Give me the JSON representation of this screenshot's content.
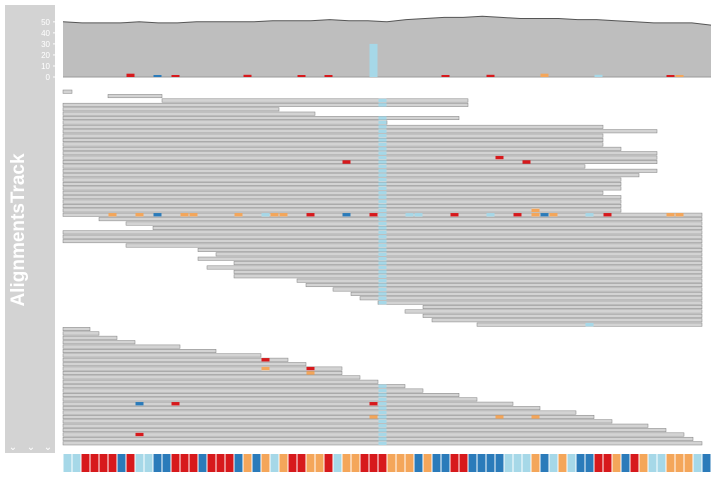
{
  "track": {
    "title": "AlignmentsTrack",
    "coverage_ticks": [
      "50",
      "40",
      "30",
      "20",
      "10",
      "0"
    ],
    "collapse_glyph": "⌄",
    "colors": {
      "panel": "#d3d3d3",
      "coverage_fill": "#bebebe",
      "coverage_line": "#555555",
      "read_fill": "#d3d3d3",
      "read_border": "#808080",
      "mismatch_A": "#a6d8e8",
      "mismatch_C": "#2b7bba",
      "mismatch_G": "#f4a65a",
      "mismatch_T": "#d7191c"
    }
  },
  "chart_data": {
    "type": "area",
    "title": "",
    "xlabel": "",
    "ylabel": "",
    "ylim": [
      0,
      58
    ],
    "coverage": [
      50,
      49,
      49,
      49,
      50,
      49,
      49,
      50,
      50,
      50,
      50,
      51,
      51,
      51,
      52,
      51,
      51,
      50,
      52,
      53,
      54,
      54,
      55,
      54,
      53,
      53,
      53,
      52,
      52,
      51,
      50,
      49,
      49,
      49,
      47
    ],
    "coverage_variants": [
      {
        "pos": 7,
        "base": "T",
        "count": 3
      },
      {
        "pos": 10,
        "base": "C",
        "count": 1
      },
      {
        "pos": 12,
        "base": "T",
        "count": 1
      },
      {
        "pos": 20,
        "base": "T",
        "count": 2
      },
      {
        "pos": 26,
        "base": "T",
        "count": 1
      },
      {
        "pos": 29,
        "base": "T",
        "count": 1
      },
      {
        "pos": 34,
        "base": "A",
        "count": 30
      },
      {
        "pos": 42,
        "base": "T",
        "count": 1
      },
      {
        "pos": 47,
        "base": "T",
        "count": 2
      },
      {
        "pos": 53,
        "base": "G",
        "count": 3
      },
      {
        "pos": 59,
        "base": "A",
        "count": 2
      },
      {
        "pos": 67,
        "base": "T",
        "count": 1
      },
      {
        "pos": 68,
        "base": "G",
        "count": 1
      }
    ],
    "sequence": "AATTTTCTAACCTTTCTTTCGCGAGTTGGTAGGTTTGGGCGCCTTCCCCAAAGCAGACCTTGCTGAAGGGAC",
    "reads": [
      [
        0,
        1
      ],
      [
        5,
        11
      ],
      [
        11,
        45
      ],
      [
        0,
        45
      ],
      [
        0,
        24
      ],
      [
        0,
        28
      ],
      [
        0,
        44
      ],
      [
        0,
        36
      ],
      [
        0,
        60
      ],
      [
        0,
        66
      ],
      [
        0,
        60
      ],
      [
        0,
        60
      ],
      [
        0,
        60
      ],
      [
        0,
        62
      ],
      [
        0,
        66
      ],
      [
        0,
        66
      ],
      [
        0,
        66
      ],
      [
        0,
        58
      ],
      [
        0,
        66
      ],
      [
        0,
        64
      ],
      [
        0,
        62
      ],
      [
        0,
        62
      ],
      [
        0,
        62
      ],
      [
        0,
        60
      ],
      [
        0,
        62
      ],
      [
        0,
        62
      ],
      [
        0,
        62
      ],
      [
        0,
        62
      ],
      [
        0,
        71
      ],
      [
        4,
        71
      ],
      [
        7,
        71
      ],
      [
        10,
        71
      ],
      [
        0,
        71
      ],
      [
        0,
        71
      ],
      [
        0,
        71
      ],
      [
        7,
        71
      ],
      [
        15,
        71
      ],
      [
        17,
        71
      ],
      [
        15,
        71
      ],
      [
        19,
        71
      ],
      [
        16,
        71
      ],
      [
        19,
        71
      ],
      [
        19,
        71
      ],
      [
        26,
        71
      ],
      [
        27,
        71
      ],
      [
        30,
        71
      ],
      [
        32,
        71
      ],
      [
        33,
        71
      ],
      [
        35,
        71
      ],
      [
        40,
        71
      ],
      [
        38,
        71
      ],
      [
        40,
        71
      ],
      [
        41,
        71
      ],
      [
        46,
        71
      ],
      [
        0,
        3
      ],
      [
        0,
        4
      ],
      [
        0,
        6
      ],
      [
        0,
        8
      ],
      [
        0,
        13
      ],
      [
        0,
        17
      ],
      [
        0,
        22
      ],
      [
        0,
        25
      ],
      [
        0,
        27
      ],
      [
        0,
        31
      ],
      [
        0,
        31
      ],
      [
        0,
        33
      ],
      [
        0,
        35
      ],
      [
        0,
        38
      ],
      [
        0,
        40
      ],
      [
        0,
        44
      ],
      [
        0,
        46
      ],
      [
        0,
        50
      ],
      [
        0,
        53
      ],
      [
        0,
        57
      ],
      [
        0,
        59
      ],
      [
        0,
        61
      ],
      [
        0,
        65
      ],
      [
        0,
        67
      ],
      [
        0,
        69
      ],
      [
        0,
        70
      ],
      [
        0,
        71
      ]
    ],
    "mismatches": [
      {
        "row": 16,
        "pos": 31,
        "base": "T"
      },
      {
        "row": 16,
        "pos": 51,
        "base": "T"
      },
      {
        "row": 15,
        "pos": 48,
        "base": "T"
      },
      {
        "row": 28,
        "pos": 5,
        "base": "G"
      },
      {
        "row": 28,
        "pos": 8,
        "base": "G"
      },
      {
        "row": 28,
        "pos": 10,
        "base": "C"
      },
      {
        "row": 28,
        "pos": 13,
        "base": "G"
      },
      {
        "row": 28,
        "pos": 14,
        "base": "G"
      },
      {
        "row": 28,
        "pos": 19,
        "base": "G"
      },
      {
        "row": 28,
        "pos": 22,
        "base": "A"
      },
      {
        "row": 28,
        "pos": 23,
        "base": "G"
      },
      {
        "row": 28,
        "pos": 24,
        "base": "G"
      },
      {
        "row": 28,
        "pos": 27,
        "base": "T"
      },
      {
        "row": 28,
        "pos": 31,
        "base": "C"
      },
      {
        "row": 28,
        "pos": 34,
        "base": "T"
      },
      {
        "row": 28,
        "pos": 38,
        "base": "A"
      },
      {
        "row": 28,
        "pos": 39,
        "base": "A"
      },
      {
        "row": 28,
        "pos": 43,
        "base": "T"
      },
      {
        "row": 28,
        "pos": 47,
        "base": "A"
      },
      {
        "row": 28,
        "pos": 50,
        "base": "T"
      },
      {
        "row": 28,
        "pos": 52,
        "base": "G"
      },
      {
        "row": 28,
        "pos": 53,
        "base": "C"
      },
      {
        "row": 28,
        "pos": 54,
        "base": "G"
      },
      {
        "row": 28,
        "pos": 58,
        "base": "A"
      },
      {
        "row": 28,
        "pos": 60,
        "base": "T"
      },
      {
        "row": 28,
        "pos": 67,
        "base": "G"
      },
      {
        "row": 28,
        "pos": 68,
        "base": "G"
      },
      {
        "row": 27,
        "pos": 52,
        "base": "G"
      },
      {
        "row": 53,
        "pos": 58,
        "base": "A"
      },
      {
        "row": 61,
        "pos": 22,
        "base": "T"
      },
      {
        "row": 63,
        "pos": 22,
        "base": "G"
      },
      {
        "row": 63,
        "pos": 27,
        "base": "T"
      },
      {
        "row": 64,
        "pos": 27,
        "base": "G"
      },
      {
        "row": 71,
        "pos": 8,
        "base": "C"
      },
      {
        "row": 71,
        "pos": 12,
        "base": "T"
      },
      {
        "row": 71,
        "pos": 34,
        "base": "T"
      },
      {
        "row": 74,
        "pos": 34,
        "base": "G"
      },
      {
        "row": 74,
        "pos": 48,
        "base": "G"
      },
      {
        "row": 74,
        "pos": 52,
        "base": "G"
      },
      {
        "row": 78,
        "pos": 8,
        "base": "T"
      }
    ],
    "consensus_mismatch": {
      "pos": 35,
      "base": "A"
    }
  }
}
